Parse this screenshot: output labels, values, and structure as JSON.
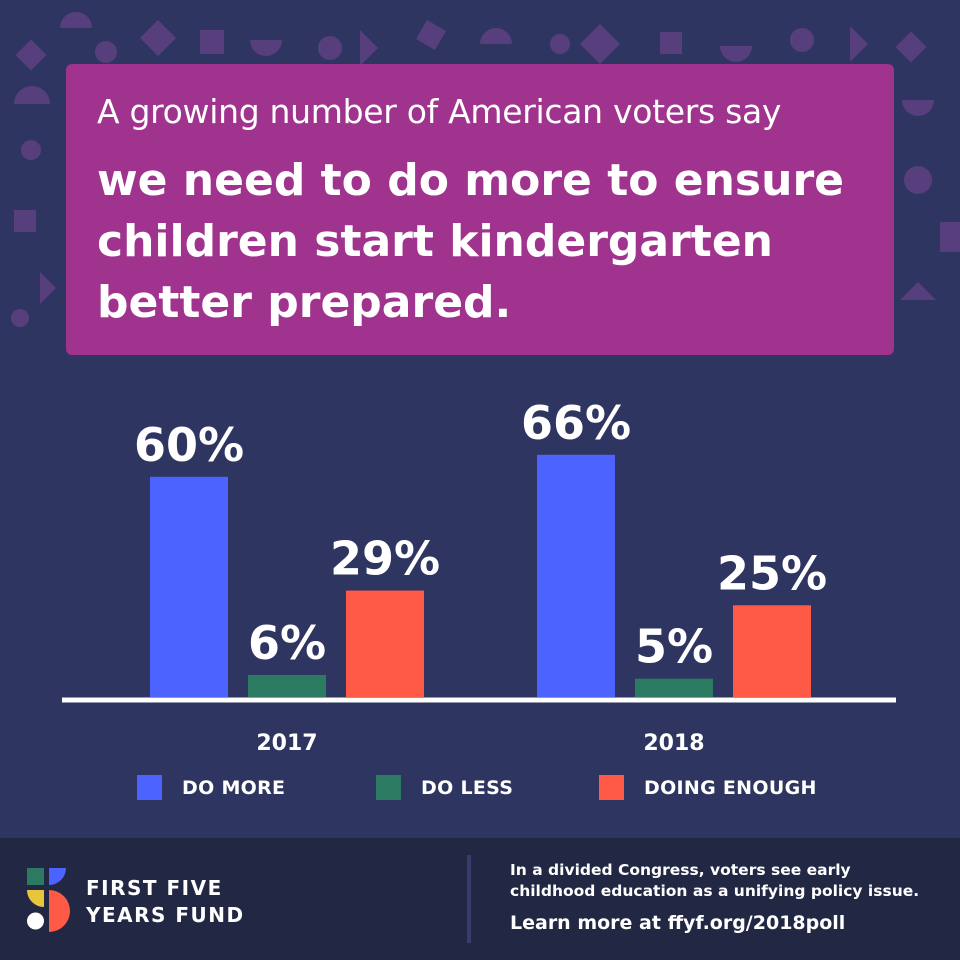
{
  "headline": {
    "intro": "A growing number of American voters say",
    "main": "we need to do more to ensure children start kindergarten better prepared."
  },
  "colors": {
    "background": "#2e3560",
    "headline_box": "#a0338e",
    "do_more": "#4c63ff",
    "do_less": "#2d7a62",
    "doing_enough": "#ff5a45",
    "footer": "#222744"
  },
  "chart_data": {
    "type": "bar",
    "categories": [
      "2017",
      "2018"
    ],
    "series": [
      {
        "name": "DO MORE",
        "values": [
          60,
          66
        ],
        "labels": [
          "60%",
          "66%"
        ]
      },
      {
        "name": "DO LESS",
        "values": [
          6,
          5
        ],
        "labels": [
          "6%",
          "5%"
        ]
      },
      {
        "name": "DOING ENOUGH",
        "values": [
          29,
          25
        ],
        "labels": [
          "29%",
          "25%"
        ]
      }
    ],
    "title": "",
    "xlabel": "",
    "ylabel": "",
    "ylim": [
      0,
      100
    ],
    "grid": false,
    "legend_position": "bottom"
  },
  "footer": {
    "org_line1": "FIRST FIVE",
    "org_line2": "YEARS FUND",
    "message": "In a divided Congress, voters see early childhood education as a unifying policy issue.",
    "link": "Learn more at ffyf.org/2018poll"
  }
}
